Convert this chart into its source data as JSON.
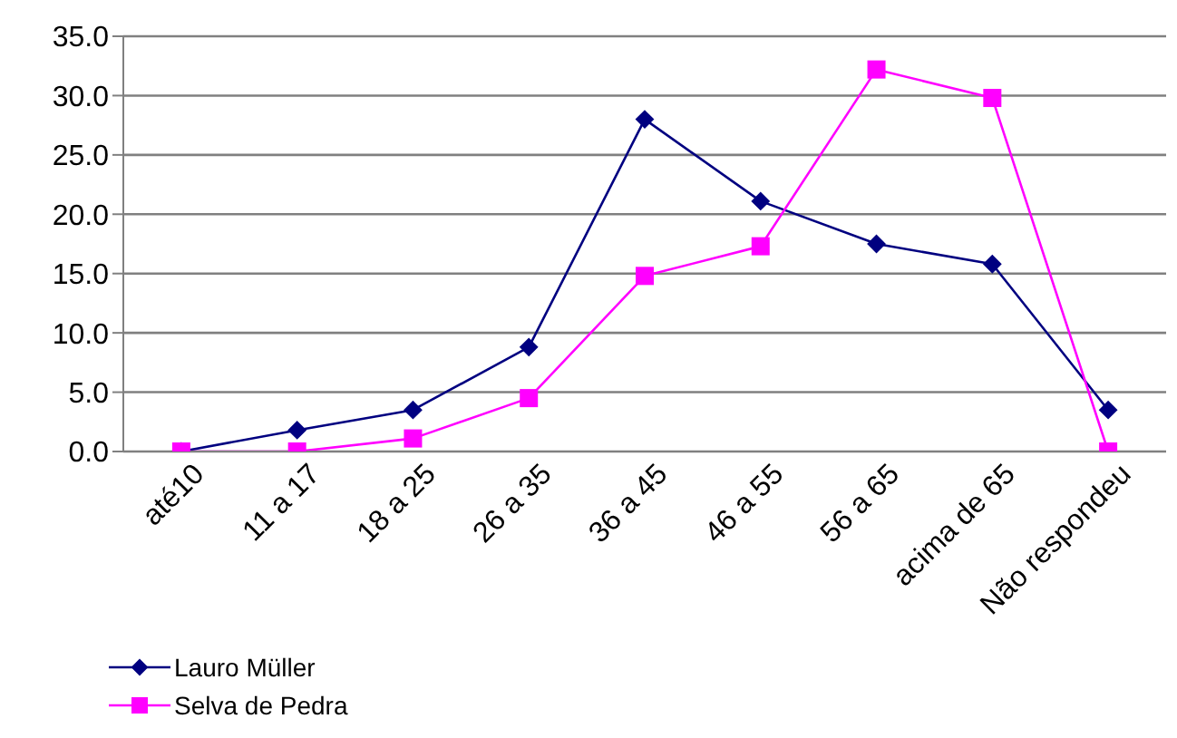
{
  "chart_data": {
    "type": "line",
    "categories": [
      "até10",
      "11 a 17",
      "18 a 25",
      "26 a 35",
      "36 a 45",
      "46 a 55",
      "56 a 65",
      "acima de 65",
      "Não respondeu"
    ],
    "series": [
      {
        "name": "Lauro Müller",
        "color": "#000080",
        "marker": "diamond",
        "values": [
          0,
          1.8,
          3.5,
          8.8,
          28.0,
          21.1,
          17.5,
          15.8,
          3.5
        ]
      },
      {
        "name": "Selva de Pedra",
        "color": "#ff00ff",
        "marker": "square",
        "values": [
          0,
          0,
          1.1,
          4.5,
          14.8,
          17.3,
          32.2,
          29.8,
          0
        ]
      }
    ],
    "ylim": [
      0,
      35
    ],
    "yticks": [
      {
        "value": 0,
        "label": "0.0"
      },
      {
        "value": 5,
        "label": "5.0"
      },
      {
        "value": 10,
        "label": "10.0"
      },
      {
        "value": 15,
        "label": "15.0"
      },
      {
        "value": 20,
        "label": "20.0"
      },
      {
        "value": 25,
        "label": "25.0"
      },
      {
        "value": 30,
        "label": "30.0"
      },
      {
        "value": 35,
        "label": "35.0"
      }
    ],
    "grid": "y",
    "legend": "bottom left"
  }
}
